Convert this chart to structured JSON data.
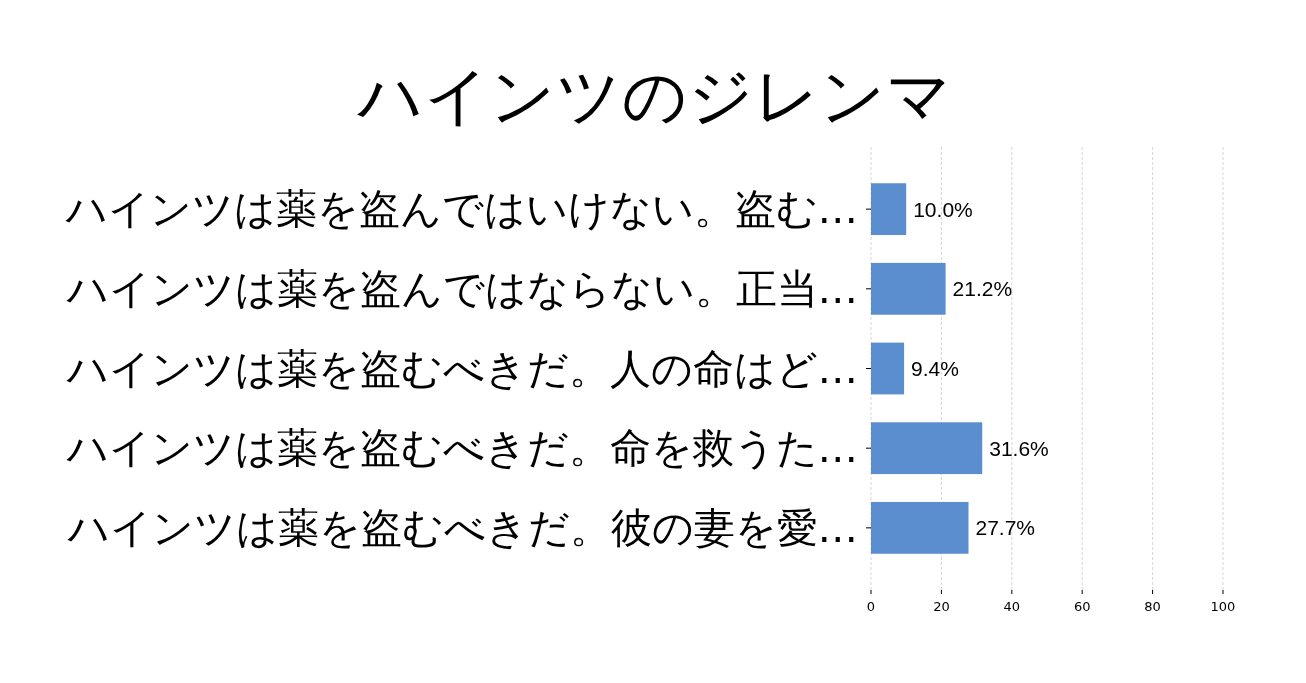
{
  "chart_data": {
    "type": "bar",
    "orientation": "horizontal",
    "title": "ハインツのジレンマ",
    "categories": [
      "ハインツは薬を盗んではいけない。盗む…",
      "ハインツは薬を盗んではならない。正当…",
      "ハインツは薬を盗むべきだ。人の命はど…",
      "ハインツは薬を盗むべきだ。命を救うた…",
      "ハインツは薬を盗むべきだ。彼の妻を愛…"
    ],
    "values": [
      10.0,
      21.2,
      9.4,
      31.6,
      27.7
    ],
    "value_labels": [
      "10.0%",
      "21.2%",
      "9.4%",
      "31.6%",
      "27.7%"
    ],
    "color": "#5b8ecf",
    "xlim": [
      0,
      100
    ],
    "xticks": [
      0,
      20,
      40,
      60,
      80,
      100
    ],
    "grid": "x"
  }
}
